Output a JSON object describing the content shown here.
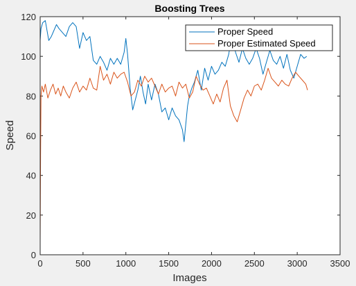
{
  "chart_data": {
    "type": "line",
    "title": "Boosting Trees",
    "xlabel": "Images",
    "ylabel": "Speed",
    "xlim": [
      0,
      3500
    ],
    "ylim": [
      0,
      120
    ],
    "xticks": [
      0,
      500,
      1000,
      1500,
      2000,
      2500,
      3000,
      3500
    ],
    "yticks": [
      0,
      20,
      40,
      60,
      80,
      100,
      120
    ],
    "grid": false,
    "legend_position": "top-right",
    "series": [
      {
        "name": "Proper Speed",
        "color": "#0072BD",
        "x": [
          0,
          10,
          30,
          60,
          100,
          130,
          160,
          190,
          220,
          260,
          300,
          340,
          380,
          420,
          460,
          500,
          540,
          580,
          620,
          660,
          700,
          740,
          780,
          820,
          860,
          900,
          940,
          980,
          1000,
          1020,
          1050,
          1080,
          1110,
          1140,
          1170,
          1200,
          1230,
          1260,
          1300,
          1340,
          1380,
          1420,
          1460,
          1500,
          1540,
          1580,
          1620,
          1660,
          1680,
          1700,
          1720,
          1740,
          1770,
          1800,
          1840,
          1880,
          1920,
          1960,
          2000,
          2040,
          2080,
          2120,
          2160,
          2200,
          2240,
          2280,
          2320,
          2360,
          2400,
          2440,
          2480,
          2520,
          2560,
          2600,
          2640,
          2680,
          2720,
          2760,
          2800,
          2840,
          2880,
          2920,
          2960,
          3000,
          3040,
          3080,
          3110
        ],
        "values": [
          108,
          114,
          117,
          118,
          108,
          110,
          113,
          116,
          114,
          112,
          110,
          115,
          117,
          115,
          104,
          112,
          108,
          110,
          98,
          96,
          100,
          97,
          93,
          99,
          96,
          99,
          96,
          102,
          109,
          101,
          84,
          73,
          78,
          83,
          90,
          82,
          76,
          86,
          78,
          86,
          81,
          72,
          74,
          68,
          74,
          70,
          68,
          63,
          57,
          66,
          75,
          80,
          84,
          87,
          93,
          83,
          94,
          88,
          95,
          91,
          93,
          97,
          95,
          101,
          111,
          102,
          97,
          104,
          99,
          96,
          99,
          104,
          99,
          91,
          97,
          103,
          98,
          96,
          100,
          94,
          101,
          93,
          89,
          95,
          101,
          99,
          100
        ]
      },
      {
        "name": "Proper Estimated Speed",
        "color": "#D95319",
        "x": [
          0,
          5,
          10,
          20,
          40,
          60,
          90,
          120,
          150,
          180,
          210,
          240,
          270,
          300,
          340,
          380,
          420,
          460,
          500,
          540,
          580,
          620,
          660,
          700,
          740,
          780,
          820,
          860,
          900,
          940,
          980,
          1020,
          1060,
          1100,
          1140,
          1180,
          1220,
          1260,
          1300,
          1340,
          1380,
          1420,
          1460,
          1500,
          1540,
          1580,
          1620,
          1660,
          1700,
          1740,
          1780,
          1820,
          1860,
          1900,
          1940,
          1980,
          2020,
          2060,
          2100,
          2140,
          2180,
          2220,
          2260,
          2300,
          2340,
          2380,
          2420,
          2460,
          2500,
          2540,
          2580,
          2620,
          2660,
          2700,
          2740,
          2780,
          2820,
          2860,
          2900,
          2940,
          2980,
          3020,
          3060,
          3100,
          3120
        ],
        "values": [
          6,
          50,
          80,
          85,
          82,
          86,
          79,
          83,
          86,
          81,
          84,
          80,
          85,
          82,
          79,
          84,
          87,
          82,
          85,
          83,
          89,
          84,
          83,
          95,
          88,
          91,
          86,
          92,
          89,
          91,
          92,
          87,
          80,
          82,
          88,
          85,
          90,
          87,
          89,
          85,
          81,
          86,
          82,
          84,
          85,
          80,
          87,
          84,
          86,
          79,
          82,
          90,
          86,
          83,
          84,
          80,
          76,
          81,
          77,
          84,
          88,
          75,
          70,
          67,
          73,
          79,
          83,
          80,
          85,
          86,
          83,
          88,
          94,
          89,
          87,
          85,
          88,
          86,
          85,
          89,
          92,
          90,
          88,
          86,
          83
        ]
      }
    ]
  }
}
